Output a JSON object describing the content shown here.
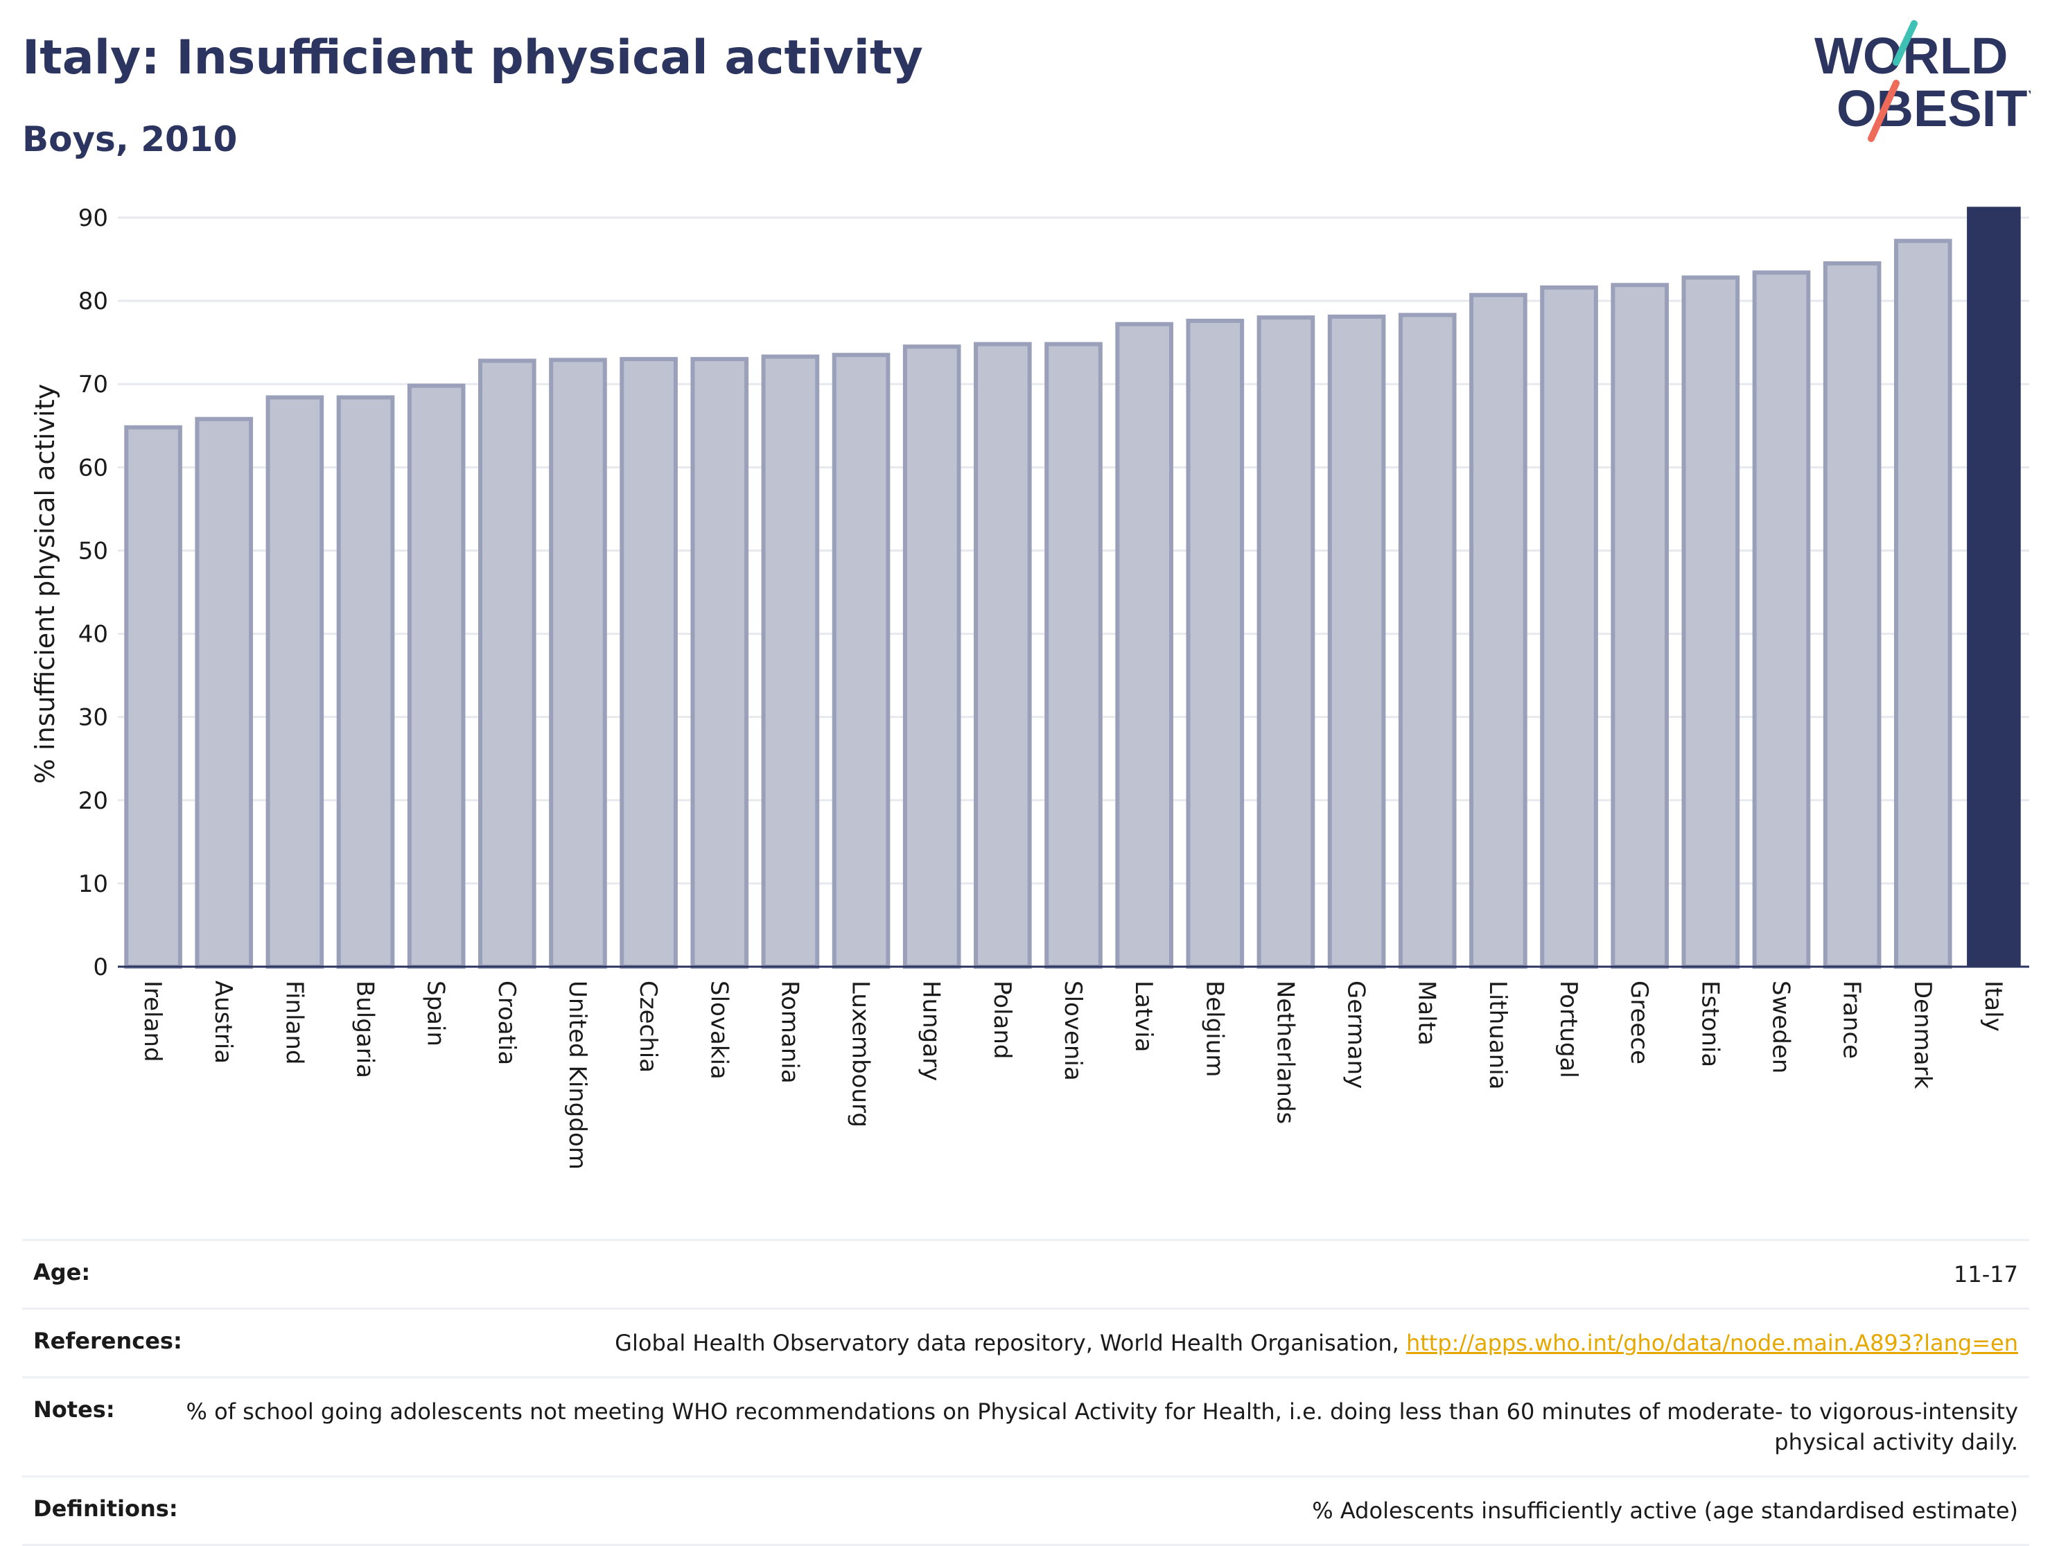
{
  "header": {
    "title": "Italy: Insufficient physical activity",
    "subtitle": "Boys, 2010"
  },
  "logo": {
    "line1": "WORLD",
    "line2": "OBESITY",
    "colors": {
      "text": "#2b3560",
      "slash_teal": "#3ec1b4",
      "slash_coral": "#ee6b5a"
    }
  },
  "chart_data": {
    "type": "bar",
    "ylabel": "% insufficient physical activity",
    "xlabel": "",
    "ylim": [
      0,
      92
    ],
    "yticks": [
      0,
      10,
      20,
      30,
      40,
      50,
      60,
      70,
      80,
      90
    ],
    "grid": true,
    "categories": [
      "Ireland",
      "Austria",
      "Finland",
      "Bulgaria",
      "Spain",
      "Croatia",
      "United Kingdom",
      "Czechia",
      "Slovakia",
      "Romania",
      "Luxembourg",
      "Hungary",
      "Poland",
      "Slovenia",
      "Latvia",
      "Belgium",
      "Netherlands",
      "Germany",
      "Malta",
      "Lithuania",
      "Portugal",
      "Greece",
      "Estonia",
      "Sweden",
      "France",
      "Denmark",
      "Italy"
    ],
    "values": [
      64.8,
      65.8,
      68.4,
      68.4,
      69.8,
      72.8,
      72.9,
      73.0,
      73.0,
      73.3,
      73.5,
      74.5,
      74.8,
      74.8,
      77.2,
      77.6,
      78.0,
      78.1,
      78.3,
      80.7,
      81.6,
      81.9,
      82.8,
      83.4,
      84.5,
      87.2,
      91.3
    ],
    "highlight": "Italy",
    "colors": {
      "bar": "#bfc2d1",
      "bar_edge": "#9aa0b9",
      "highlight": "#2b3560",
      "grid": "#e8e9ef",
      "axis": "#2b3560"
    }
  },
  "table": {
    "rows": [
      {
        "label": "Age:",
        "value": "11-17",
        "link": ""
      },
      {
        "label": "References:",
        "value": "Global Health Observatory data repository, World Health Organisation, ",
        "link": "http://apps.who.int/gho/data/node.main.A893?lang=en"
      },
      {
        "label": "Notes:",
        "value": "% of school going adolescents not meeting WHO recommendations on Physical Activity for Health, i.e. doing less than 60 minutes of moderate- to vigorous-intensity physical activity daily.",
        "link": ""
      },
      {
        "label": "Definitions:",
        "value": "% Adolescents insufficiently active (age standardised estimate)",
        "link": ""
      }
    ]
  }
}
